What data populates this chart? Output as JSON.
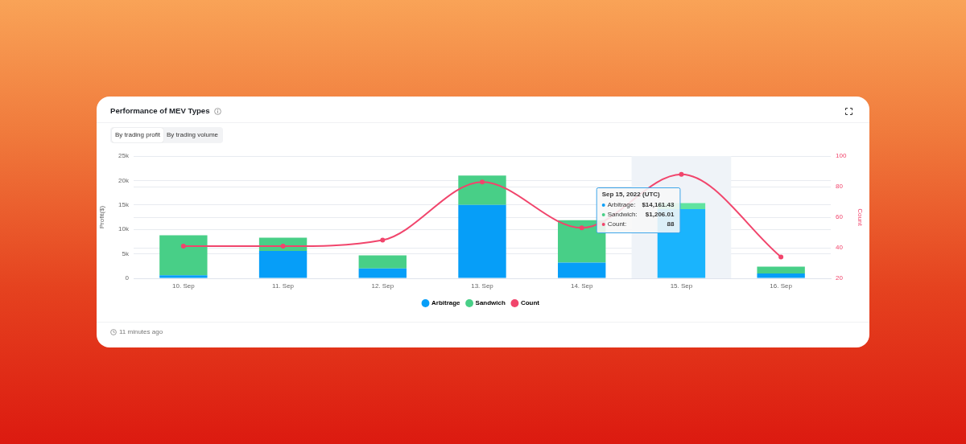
{
  "chart_data": {
    "type": "bar",
    "title": "Performance of MEV Types",
    "ylabel": "Profit($)",
    "y2label": "Count",
    "categories": [
      "10. Sep",
      "11. Sep",
      "12. Sep",
      "13. Sep",
      "14. Sep",
      "15. Sep",
      "16. Sep"
    ],
    "series": [
      {
        "name": "Arbitrage",
        "color": "#069ef8",
        "colors": [
          "#069ef8",
          "#069ef8",
          "#069ef8",
          "#069ef8",
          "#069ef8",
          "#1ab4fd",
          "#069ef8"
        ],
        "values": [
          600,
          5600,
          2000,
          15000,
          3200,
          14161.43,
          1000
        ]
      },
      {
        "name": "Sandwich",
        "color": "#48cf87",
        "colors": [
          "#48cf87",
          "#48cf87",
          "#48cf87",
          "#48cf87",
          "#48cf87",
          "#60e3a0",
          "#48cf87"
        ],
        "values": [
          8200,
          2700,
          2700,
          6000,
          8700,
          1206.01,
          1400
        ]
      },
      {
        "name": "Count",
        "type": "line",
        "axis": "y2",
        "color": "#f1456c",
        "values": [
          41,
          41,
          45,
          83,
          53,
          88,
          34
        ]
      }
    ],
    "stacked": true,
    "ylim": [
      0,
      25000
    ],
    "yticks": [
      0,
      {
        "value": 5000,
        "label": "5k"
      },
      {
        "value": 10000,
        "label": "10k"
      },
      {
        "value": 15000,
        "label": "15k"
      },
      {
        "value": 20000,
        "label": "20k"
      },
      {
        "value": 25000,
        "label": "25k"
      }
    ],
    "y2lim": [
      20,
      100
    ],
    "y2ticks": [
      20,
      40,
      60,
      80,
      100
    ],
    "grid": true,
    "legend": "bottom",
    "marker": "circle",
    "bands": [
      {
        "axis": "x",
        "from": "15. Sep",
        "to": "15. Sep",
        "color": "#eff3f8"
      }
    ],
    "annotations": [
      "By trading profit",
      "By trading volume",
      "Sep 15, 2022 (UTC)",
      "Arbitrage:",
      "$14,161.43",
      "Sandwich:",
      "$1,206.01",
      "Count:",
      "88",
      "11 minutes ago"
    ]
  }
}
